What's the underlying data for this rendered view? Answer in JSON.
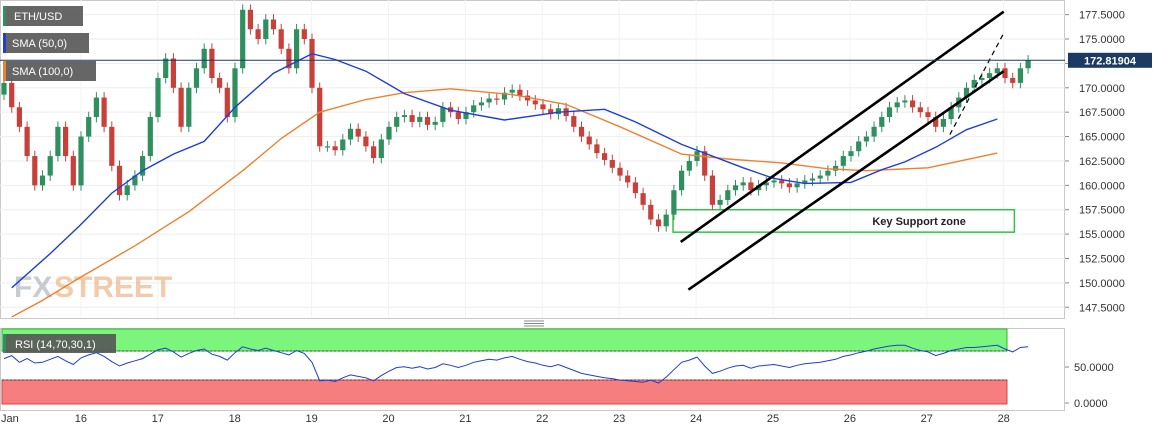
{
  "chart_data": {
    "type": "candlestick",
    "symbol": "ETH/USD",
    "x_ticks": [
      "Jan",
      "16",
      "17",
      "18",
      "19",
      "20",
      "21",
      "22",
      "23",
      "24",
      "25",
      "26",
      "27",
      "28"
    ],
    "y_ticks": [
      "177.5000",
      "175.0000",
      "172.5000",
      "170.0000",
      "167.5000",
      "165.0000",
      "162.5000",
      "160.0000",
      "157.5000",
      "155.0000",
      "152.5000",
      "150.0000",
      "147.5000"
    ],
    "ylim": [
      146.4,
      179.0
    ],
    "current_price": "172.81904",
    "legend": [
      {
        "label": "ETH/USD",
        "color": "#2f8f5f"
      },
      {
        "label": "SMA (50,0)",
        "color": "#1d3fd8"
      },
      {
        "label": "SMA (100,0)",
        "color": "#f07f2e"
      }
    ],
    "candles_close": [
      170.5,
      168,
      166,
      163,
      160,
      161,
      163,
      166,
      163,
      160,
      165,
      167,
      169,
      166,
      162,
      159,
      160,
      161,
      163,
      167,
      171,
      173,
      170,
      166,
      170,
      172,
      174,
      171,
      170,
      167,
      172,
      178,
      176,
      175,
      177,
      176,
      174,
      172,
      176,
      175,
      170,
      164,
      164,
      163.6,
      164.7,
      165.8,
      165.0,
      164.0,
      162.8,
      164.7,
      166.0,
      167.0,
      167.2,
      166.5,
      167.0,
      166.2,
      166.5,
      168.0,
      167.5,
      166.8,
      167.5,
      168.2,
      168.5,
      168.9,
      168.8,
      169.5,
      169.8,
      169.2,
      168.7,
      168.3,
      167.8,
      167.3,
      167.9,
      167.1,
      166.0,
      165.0,
      164.2,
      163.3,
      162.6,
      161.8,
      161.0,
      160.3,
      159.2,
      158.0,
      156.5,
      155.8,
      157.0,
      159.5,
      161.5,
      162.5,
      163.5,
      161.0,
      158.0,
      158.5,
      159.5,
      160.0,
      160.3,
      159.5,
      160.0,
      160.3,
      160.5,
      160.2,
      159.8,
      160.2,
      160.5,
      160.7,
      161.0,
      161.5,
      162.0,
      163.0,
      163.5,
      164.5,
      165.0,
      166.0,
      167.0,
      168.0,
      168.5,
      168.7,
      168.0,
      167.5,
      167.0,
      166.0,
      166.8,
      168.0,
      169.0,
      170.0,
      170.8,
      171.0,
      171.5,
      172.0,
      171.0,
      170.5,
      172.0,
      172.8
    ],
    "sma50": [
      [
        1,
        149.5
      ],
      [
        6,
        153
      ],
      [
        10,
        156
      ],
      [
        14,
        159.2
      ],
      [
        18,
        161.5
      ],
      [
        22,
        163.2
      ],
      [
        26,
        164.5
      ],
      [
        30,
        168.0
      ],
      [
        35,
        171.5
      ],
      [
        40,
        173.5
      ],
      [
        43,
        172.9
      ],
      [
        47,
        171.7
      ],
      [
        52,
        169.4
      ],
      [
        58,
        167.7
      ],
      [
        65,
        166.7
      ],
      [
        72,
        167.5
      ],
      [
        78,
        167.8
      ],
      [
        82,
        166.5
      ],
      [
        88,
        164.2
      ],
      [
        96,
        161.8
      ],
      [
        100,
        160.7
      ],
      [
        104,
        160.2
      ],
      [
        110,
        160.3
      ],
      [
        114,
        161.6
      ],
      [
        117,
        162.4
      ],
      [
        121,
        163.9
      ],
      [
        125,
        165.7
      ],
      [
        129,
        166.8
      ]
    ],
    "sma100": [
      [
        1,
        146.5
      ],
      [
        5,
        148.2
      ],
      [
        10,
        150.6
      ],
      [
        17,
        153.8
      ],
      [
        24,
        157.3
      ],
      [
        31,
        161.5
      ],
      [
        36,
        164.8
      ],
      [
        41,
        167.5
      ],
      [
        47,
        168.8
      ],
      [
        52,
        169.5
      ],
      [
        58,
        169.9
      ],
      [
        66,
        169.3
      ],
      [
        73,
        168.3
      ],
      [
        80,
        166.0
      ],
      [
        88,
        163.2
      ],
      [
        94,
        162.7
      ],
      [
        101,
        162.3
      ],
      [
        107,
        161.7
      ],
      [
        112,
        161.5
      ],
      [
        120,
        161.8
      ],
      [
        129,
        163.3
      ]
    ],
    "channel_upper": [
      [
        23.8,
        154.2
      ],
      [
        28.0,
        177.8
      ]
    ],
    "channel_lower": [
      [
        23.9,
        149.3
      ],
      [
        28.0,
        171.7
      ]
    ],
    "channel_mid": [
      [
        27.3,
        165.2
      ],
      [
        28.0,
        175.6
      ]
    ],
    "support_zone": {
      "y1": 155.2,
      "y2": 157.5,
      "label": "Key  Support zone"
    },
    "rsi": {
      "label": "RSI (14,70,30,1)",
      "y_ticks": [
        "50.0000",
        "0.0000"
      ],
      "overbought": 70,
      "oversold": 30,
      "values": [
        60,
        64,
        55,
        60,
        54,
        55,
        59,
        63,
        57,
        52,
        61,
        65,
        68,
        63,
        56,
        50,
        54,
        57,
        60,
        66,
        72,
        74,
        69,
        62,
        67,
        71,
        73,
        66,
        63,
        58,
        68,
        76,
        73,
        71,
        74,
        71,
        68,
        65,
        71,
        67,
        55,
        30,
        31,
        29,
        34,
        38,
        36,
        34,
        30,
        37,
        43,
        48,
        49,
        47,
        49,
        46,
        48,
        53,
        51,
        48,
        51,
        55,
        57,
        59,
        58,
        61,
        63,
        59,
        56,
        54,
        51,
        49,
        52,
        48,
        44,
        40,
        38,
        36,
        34,
        33,
        31,
        30,
        29,
        28,
        31,
        27,
        35,
        45,
        55,
        58,
        62,
        50,
        40,
        43,
        47,
        50,
        51,
        47,
        50,
        51,
        52,
        50,
        48,
        51,
        53,
        54,
        55,
        57,
        59,
        63,
        65,
        68,
        70,
        73,
        75,
        77,
        78,
        78,
        74,
        71,
        69,
        64,
        67,
        71,
        73,
        75,
        75,
        76,
        77,
        78,
        73,
        69,
        75,
        76
      ]
    }
  },
  "watermark": {
    "part1": "FX",
    "part2": "STREET"
  }
}
